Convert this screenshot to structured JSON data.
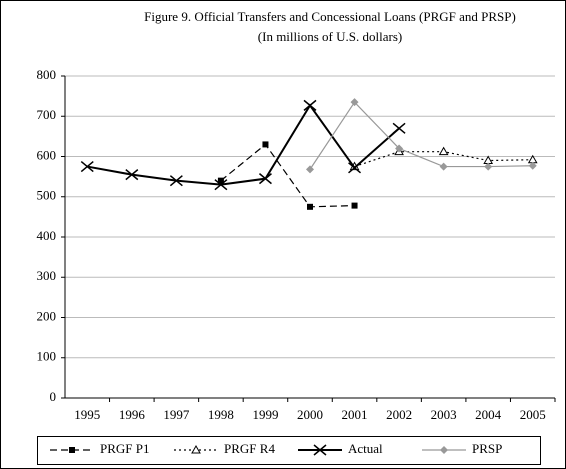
{
  "chart_data": {
    "type": "line",
    "title": "Figure 9. Official Transfers and Concessional Loans (PRGF and PRSP)",
    "subtitle": "(In millions of U.S. dollars)",
    "categories": [
      "1995",
      "1996",
      "1997",
      "1998",
      "1999",
      "2000",
      "2001",
      "2002",
      "2003",
      "2004",
      "2005"
    ],
    "series": [
      {
        "name": "PRGF P1",
        "color": "#000000",
        "dash": "7,4",
        "marker": "square",
        "values": [
          null,
          null,
          null,
          540,
          630,
          475,
          478,
          null,
          null,
          null,
          null
        ]
      },
      {
        "name": "PRGF R4",
        "color": "#000000",
        "dash": "2,3",
        "marker": "triangle",
        "values": [
          null,
          null,
          null,
          null,
          null,
          null,
          575,
          612,
          612,
          590,
          592
        ]
      },
      {
        "name": "Actual",
        "color": "#000000",
        "dash": "none",
        "marker": "x",
        "values": [
          575,
          555,
          540,
          530,
          545,
          727,
          572,
          670,
          null,
          null,
          null
        ]
      },
      {
        "name": "PRSP",
        "color": "#999999",
        "dash": "none",
        "marker": "diamond",
        "values": [
          null,
          null,
          null,
          null,
          null,
          568,
          735,
          620,
          575,
          575,
          577
        ]
      }
    ],
    "ylim": [
      0,
      800
    ],
    "yticks": [
      0,
      100,
      200,
      300,
      400,
      500,
      600,
      700,
      800
    ],
    "grid": true
  }
}
